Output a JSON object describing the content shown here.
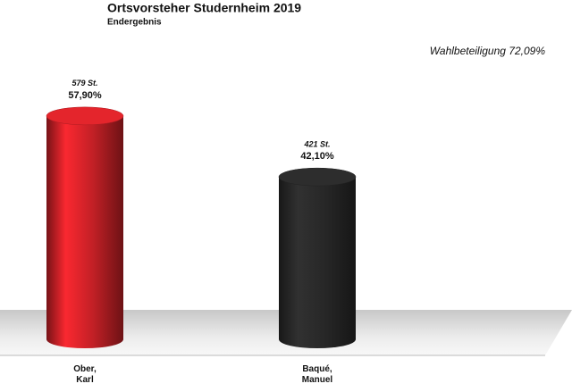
{
  "chart_data": {
    "type": "cylinder-bar",
    "title": "Ortsvorsteher Studernheim 2019",
    "subtitle": "Endergebnis",
    "annotation": "Wahlbeteiligung 72,09%",
    "categories": [
      "Ober,\nKarl",
      "Baqué,\nManuel"
    ],
    "values": [
      57.9,
      42.1
    ],
    "value_labels": [
      "57,90%",
      "42,10%"
    ],
    "vote_labels": [
      "579 St.",
      "421 St."
    ],
    "colors": [
      "#d9232a",
      "#2b2b2b"
    ]
  }
}
